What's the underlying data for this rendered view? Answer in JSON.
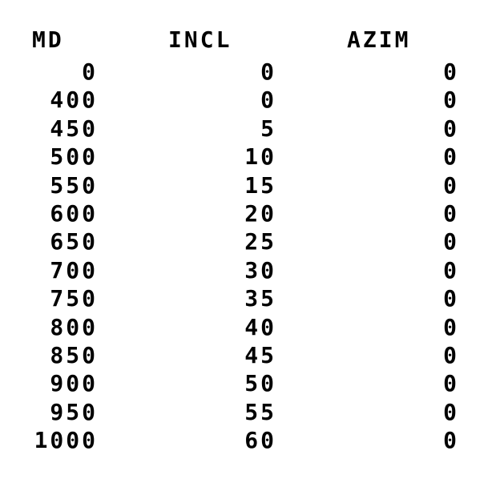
{
  "table": {
    "headers": {
      "md": "MD",
      "incl": "INCL",
      "azim": "AZIM"
    },
    "rows": [
      {
        "md": "0",
        "incl": "0",
        "azim": "0"
      },
      {
        "md": "400",
        "incl": "0",
        "azim": "0"
      },
      {
        "md": "450",
        "incl": "5",
        "azim": "0"
      },
      {
        "md": "500",
        "incl": "10",
        "azim": "0"
      },
      {
        "md": "550",
        "incl": "15",
        "azim": "0"
      },
      {
        "md": "600",
        "incl": "20",
        "azim": "0"
      },
      {
        "md": "650",
        "incl": "25",
        "azim": "0"
      },
      {
        "md": "700",
        "incl": "30",
        "azim": "0"
      },
      {
        "md": "750",
        "incl": "35",
        "azim": "0"
      },
      {
        "md": "800",
        "incl": "40",
        "azim": "0"
      },
      {
        "md": "850",
        "incl": "45",
        "azim": "0"
      },
      {
        "md": "900",
        "incl": "50",
        "azim": "0"
      },
      {
        "md": "950",
        "incl": "55",
        "azim": "0"
      },
      {
        "md": "1000",
        "incl": "60",
        "azim": "0"
      }
    ]
  }
}
